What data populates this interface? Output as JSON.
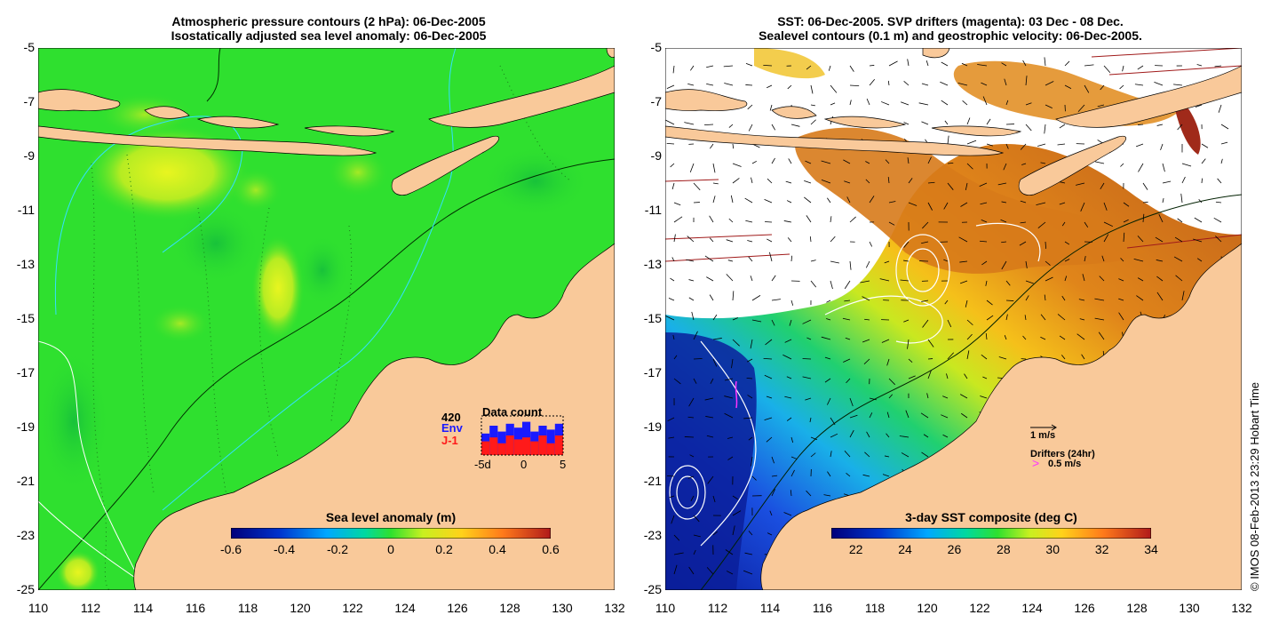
{
  "left_panel": {
    "title_line1": "Atmospheric pressure contours (2 hPa): 06-Dec-2005",
    "title_line2": "Isostatically adjusted sea level anomaly: 06-Dec-2005",
    "colorbar": {
      "label": "Sea level anomaly (m)",
      "ticks": [
        "-0.6",
        "-0.4",
        "-0.2",
        "0",
        "0.2",
        "0.4",
        "0.6"
      ],
      "min": -0.6,
      "max": 0.6
    },
    "data_count": {
      "title": "Data count",
      "total": "420",
      "env_label": "Env",
      "j1_label": "J-1",
      "x_ticks": [
        "-5d",
        "0",
        "5"
      ],
      "env_color": "#1a1aff",
      "j1_color": "#ff1a1a",
      "bars_env": [
        0.55,
        0.75,
        0.6,
        0.8,
        0.7,
        0.85,
        0.6,
        0.75,
        0.65,
        0.8
      ],
      "bars_j1": [
        0.35,
        0.45,
        0.3,
        0.5,
        0.4,
        0.45,
        0.35,
        0.5,
        0.3,
        0.5
      ]
    }
  },
  "right_panel": {
    "title_line1": "SST: 06-Dec-2005. SVP drifters (magenta): 03 Dec - 08 Dec.",
    "title_line2": "Sealevel contours (0.1 m) and geostrophic velocity: 06-Dec-2005.",
    "colorbar": {
      "label": "3-day SST composite (deg C)",
      "ticks": [
        "22",
        "24",
        "26",
        "28",
        "30",
        "32",
        "34"
      ],
      "min": 21,
      "max": 34
    },
    "velocity_scale_label": "1 m/s",
    "drifters_label": "Drifters (24hr)",
    "drifters_scale_label": "0.5 m/s",
    "drifter_color": "#ff33ff"
  },
  "axes": {
    "lon_ticks": [
      "110",
      "112",
      "114",
      "116",
      "118",
      "120",
      "122",
      "124",
      "126",
      "128",
      "130",
      "132"
    ],
    "lat_ticks": [
      "-5",
      "-7",
      "-9",
      "-11",
      "-13",
      "-15",
      "-17",
      "-19",
      "-21",
      "-23",
      "-25"
    ],
    "lon_range": [
      110,
      132
    ],
    "lat_range": [
      -25,
      -5
    ]
  },
  "credit": "© IMOS 08-Feb-2013 23:29 Hobart Time",
  "colors": {
    "land": "#f9c99a",
    "ocean_green": "#2ee02e",
    "anomaly_high": "#d6f51e",
    "sst_orange": "#e0851a",
    "sst_blue": "#1a3fd6"
  }
}
